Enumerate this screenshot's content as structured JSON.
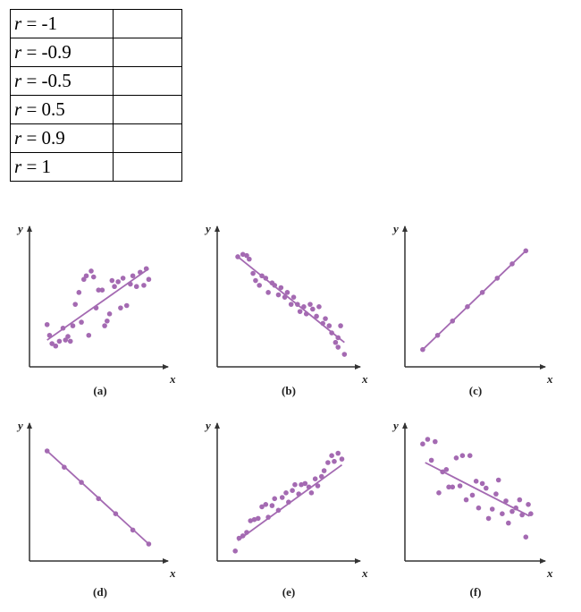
{
  "table": {
    "rows": [
      {
        "var": "r",
        "value": " = -1"
      },
      {
        "var": "r",
        "value": " = -0.9"
      },
      {
        "var": "r",
        "value": " = -0.5"
      },
      {
        "var": "r",
        "value": " = 0.5"
      },
      {
        "var": "r",
        "value": " = 0.9"
      },
      {
        "var": "r",
        "value": " = 1"
      }
    ]
  },
  "colors": {
    "points": "#a46ab2",
    "axes": "#333333"
  },
  "chart_data": [
    {
      "type": "scatter",
      "caption": "(a)",
      "xlabel": "x",
      "ylabel": "y",
      "xlim": [
        0,
        10
      ],
      "ylim": [
        0,
        10
      ],
      "trend": [
        [
          1,
          1.8
        ],
        [
          9.3,
          7.8
        ]
      ],
      "points": [
        [
          1,
          3.1
        ],
        [
          1.2,
          2.2
        ],
        [
          1.4,
          1.5
        ],
        [
          1.7,
          1.3
        ],
        [
          2.0,
          1.7
        ],
        [
          2.3,
          2.8
        ],
        [
          2.5,
          1.8
        ],
        [
          2.7,
          2.1
        ],
        [
          2.9,
          1.7
        ],
        [
          3.1,
          3.0
        ],
        [
          3.3,
          4.8
        ],
        [
          3.6,
          5.8
        ],
        [
          3.8,
          3.3
        ],
        [
          4.0,
          6.9
        ],
        [
          4.2,
          7.2
        ],
        [
          4.4,
          2.2
        ],
        [
          4.6,
          7.6
        ],
        [
          4.8,
          7.1
        ],
        [
          5.0,
          4.5
        ],
        [
          5.2,
          6.0
        ],
        [
          5.5,
          6.0
        ],
        [
          5.7,
          3.0
        ],
        [
          5.9,
          3.4
        ],
        [
          6.1,
          4.0
        ],
        [
          6.3,
          6.8
        ],
        [
          6.5,
          6.3
        ],
        [
          6.8,
          6.7
        ],
        [
          7.0,
          4.5
        ],
        [
          7.2,
          7.0
        ],
        [
          7.5,
          4.7
        ],
        [
          7.8,
          6.5
        ],
        [
          8.0,
          7.2
        ],
        [
          8.3,
          6.3
        ],
        [
          8.6,
          7.5
        ],
        [
          8.9,
          6.4
        ],
        [
          9.1,
          7.8
        ],
        [
          9.3,
          6.9
        ]
      ]
    },
    {
      "type": "scatter",
      "caption": "(b)",
      "xlabel": "x",
      "ylabel": "y",
      "xlim": [
        0,
        10
      ],
      "ylim": [
        0,
        10
      ],
      "trend": [
        [
          1.2,
          8.8
        ],
        [
          9.6,
          1.6
        ]
      ],
      "points": [
        [
          1.2,
          8.8
        ],
        [
          1.6,
          9.0
        ],
        [
          1.9,
          8.9
        ],
        [
          2.1,
          8.6
        ],
        [
          2.4,
          7.4
        ],
        [
          2.6,
          6.8
        ],
        [
          2.9,
          6.4
        ],
        [
          3.1,
          7.2
        ],
        [
          3.4,
          7.0
        ],
        [
          3.6,
          5.8
        ],
        [
          3.9,
          6.6
        ],
        [
          4.1,
          6.4
        ],
        [
          4.4,
          5.6
        ],
        [
          4.6,
          6.2
        ],
        [
          4.9,
          5.4
        ],
        [
          5.1,
          5.8
        ],
        [
          5.4,
          4.8
        ],
        [
          5.6,
          5.4
        ],
        [
          5.9,
          4.8
        ],
        [
          6.1,
          4.2
        ],
        [
          6.4,
          4.6
        ],
        [
          6.6,
          4.0
        ],
        [
          6.9,
          4.8
        ],
        [
          7.1,
          4.4
        ],
        [
          7.4,
          3.8
        ],
        [
          7.6,
          4.6
        ],
        [
          7.9,
          3.2
        ],
        [
          8.1,
          3.6
        ],
        [
          8.4,
          3.0
        ],
        [
          8.6,
          2.4
        ],
        [
          8.9,
          1.6
        ],
        [
          9.1,
          2.0
        ],
        [
          9.3,
          3.0
        ],
        [
          9.6,
          0.6
        ],
        [
          9.1,
          1.2
        ]
      ]
    },
    {
      "type": "scatter",
      "caption": "(c)",
      "xlabel": "x",
      "ylabel": "y",
      "xlim": [
        0,
        10
      ],
      "ylim": [
        0,
        10
      ],
      "trend": [
        [
          1,
          1
        ],
        [
          9.3,
          9.3
        ]
      ],
      "points": [
        [
          1,
          1
        ],
        [
          2.2,
          2.2
        ],
        [
          3.4,
          3.4
        ],
        [
          4.6,
          4.6
        ],
        [
          5.8,
          5.8
        ],
        [
          7,
          7
        ],
        [
          8.2,
          8.2
        ],
        [
          9.3,
          9.3
        ]
      ]
    },
    {
      "type": "scatter",
      "caption": "(d)",
      "xlabel": "x",
      "ylabel": "y",
      "xlim": [
        0,
        10
      ],
      "ylim": [
        0,
        10
      ],
      "trend": [
        [
          1,
          9
        ],
        [
          9.3,
          1
        ]
      ],
      "points": [
        [
          1,
          9
        ],
        [
          2.4,
          7.6
        ],
        [
          3.8,
          6.3
        ],
        [
          5.2,
          4.9
        ],
        [
          6.6,
          3.6
        ],
        [
          8.0,
          2.2
        ],
        [
          9.3,
          1
        ]
      ]
    },
    {
      "type": "scatter",
      "caption": "(e)",
      "xlabel": "x",
      "ylabel": "y",
      "xlim": [
        0,
        10
      ],
      "ylim": [
        0,
        10
      ],
      "trend": [
        [
          1.2,
          1.3
        ],
        [
          9.4,
          7.8
        ]
      ],
      "points": [
        [
          1.0,
          0.4
        ],
        [
          1.3,
          1.5
        ],
        [
          1.6,
          1.7
        ],
        [
          1.9,
          2.0
        ],
        [
          2.2,
          3.0
        ],
        [
          2.5,
          3.1
        ],
        [
          2.8,
          3.2
        ],
        [
          3.1,
          4.2
        ],
        [
          3.4,
          4.4
        ],
        [
          3.6,
          3.3
        ],
        [
          3.9,
          4.3
        ],
        [
          4.1,
          4.9
        ],
        [
          4.4,
          3.9
        ],
        [
          4.7,
          5.0
        ],
        [
          5.0,
          5.4
        ],
        [
          5.2,
          4.6
        ],
        [
          5.5,
          5.6
        ],
        [
          5.7,
          6.1
        ],
        [
          6.0,
          5.3
        ],
        [
          6.2,
          6.1
        ],
        [
          6.5,
          6.2
        ],
        [
          6.8,
          5.9
        ],
        [
          7.0,
          5.4
        ],
        [
          7.3,
          6.6
        ],
        [
          7.5,
          6.0
        ],
        [
          7.8,
          6.8
        ],
        [
          8.0,
          7.3
        ],
        [
          8.3,
          8.0
        ],
        [
          8.6,
          8.6
        ],
        [
          8.8,
          8.1
        ],
        [
          9.1,
          8.8
        ],
        [
          9.4,
          8.3
        ]
      ]
    },
    {
      "type": "scatter",
      "caption": "(f)",
      "xlabel": "x",
      "ylabel": "y",
      "xlim": [
        0,
        10
      ],
      "ylim": [
        0,
        10
      ],
      "trend": [
        [
          1.2,
          8.0
        ],
        [
          9.6,
          3.4
        ]
      ],
      "points": [
        [
          1.0,
          9.6
        ],
        [
          1.4,
          10.0
        ],
        [
          1.7,
          8.2
        ],
        [
          2.0,
          9.8
        ],
        [
          2.3,
          5.4
        ],
        [
          2.6,
          7.2
        ],
        [
          2.9,
          7.4
        ],
        [
          3.1,
          5.9
        ],
        [
          3.4,
          5.9
        ],
        [
          3.7,
          8.4
        ],
        [
          4.0,
          6.0
        ],
        [
          4.2,
          8.6
        ],
        [
          4.5,
          4.8
        ],
        [
          4.8,
          8.6
        ],
        [
          5.0,
          5.2
        ],
        [
          5.3,
          6.4
        ],
        [
          5.5,
          4.1
        ],
        [
          5.8,
          6.2
        ],
        [
          6.1,
          5.8
        ],
        [
          6.3,
          3.2
        ],
        [
          6.6,
          4.0
        ],
        [
          6.9,
          5.3
        ],
        [
          7.1,
          6.5
        ],
        [
          7.4,
          3.6
        ],
        [
          7.7,
          4.7
        ],
        [
          7.9,
          2.8
        ],
        [
          8.2,
          3.8
        ],
        [
          8.5,
          4.1
        ],
        [
          8.8,
          4.8
        ],
        [
          9.0,
          3.5
        ],
        [
          9.3,
          1.6
        ],
        [
          9.5,
          4.4
        ],
        [
          9.7,
          3.6
        ]
      ]
    }
  ]
}
